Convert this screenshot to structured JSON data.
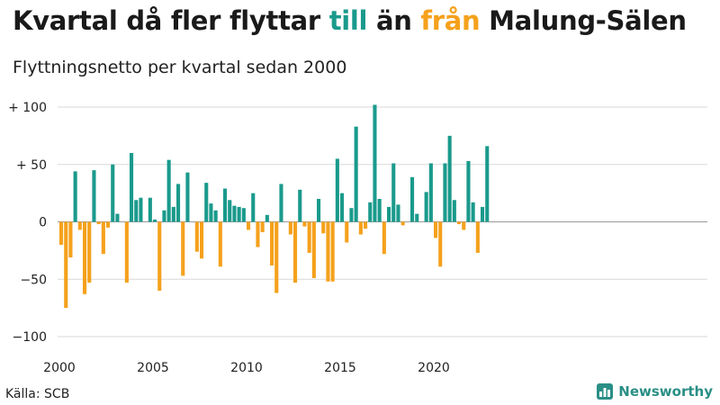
{
  "title": {
    "part1": "Kvartal då fler flyttar ",
    "pos_word": "till",
    "part2": " än ",
    "neg_word": "från",
    "part3": " Malung-Sälen"
  },
  "colors": {
    "positive": "#1a9a8c",
    "negative": "#f5a11c",
    "grid": "#d9d9d9"
  },
  "source": "Källa: SCB",
  "brand": {
    "name": "Newsworthy",
    "icon": "bar-chart-logo-icon"
  },
  "chart_data": {
    "type": "bar",
    "subtitle": "Flyttningsnetto per kvartal sedan 2000",
    "ylim": [
      -100,
      100
    ],
    "y_ticks": [
      {
        "value": 100,
        "label": "+ 100"
      },
      {
        "value": 50,
        "label": "+ 50"
      },
      {
        "value": 0,
        "label": "0"
      },
      {
        "value": -50,
        "label": "−50"
      },
      {
        "value": -100,
        "label": "−100"
      }
    ],
    "x_ticks": [
      2000,
      2005,
      2010,
      2015,
      2020
    ],
    "grid": true,
    "start_year": 2000,
    "values": [
      -20,
      -75,
      -31,
      44,
      -7,
      -63,
      -53,
      45,
      -2,
      -28,
      -5,
      50,
      7,
      0,
      -53,
      60,
      19,
      21,
      0,
      21,
      2,
      -60,
      10,
      54,
      13,
      33,
      -47,
      43,
      0,
      -26,
      -32,
      34,
      16,
      10,
      -39,
      29,
      19,
      14,
      13,
      12,
      -7,
      25,
      -22,
      -9,
      6,
      -38,
      -62,
      33,
      0,
      -11,
      -53,
      28,
      -4,
      -27,
      -49,
      20,
      -10,
      -52,
      -52,
      55,
      25,
      -18,
      12,
      83,
      -11,
      -6,
      17,
      102,
      20,
      -28,
      13,
      51,
      15,
      -3,
      0,
      39,
      7,
      0,
      26,
      51,
      -14,
      -39,
      51,
      75,
      19,
      -2,
      -7,
      53,
      17,
      -27,
      13,
      66
    ]
  }
}
